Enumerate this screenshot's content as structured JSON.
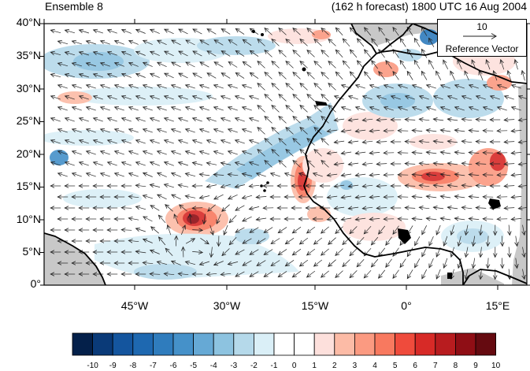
{
  "header": {
    "left_title": "Ensemble 8",
    "right_title": "(162 h forecast) 1800 UTC 16 Aug 2004"
  },
  "map": {
    "lat_labels": [
      "40°N",
      "35°N",
      "30°N",
      "25°N",
      "20°N",
      "15°N",
      "10°N",
      "5°N",
      "0°"
    ],
    "lon_labels": [
      "45°W",
      "30°W",
      "15°W",
      "0°",
      "15°E"
    ],
    "lon_range": [
      -58,
      20
    ],
    "lat_range": [
      0,
      40
    ],
    "land_mask_color": "#c8c8c8",
    "coastline_color": "#000000"
  },
  "reference_vector": {
    "magnitude": "10",
    "label": "Reference Vector"
  },
  "colorbar": {
    "labels": [
      "-10",
      "-9",
      "-8",
      "-7",
      "-6",
      "-5",
      "-4",
      "-3",
      "-2",
      "-1",
      "0",
      "1",
      "2",
      "3",
      "4",
      "5",
      "6",
      "7",
      "8",
      "9",
      "10"
    ],
    "colors": [
      "#04204a",
      "#0a3a78",
      "#14559e",
      "#1e68b0",
      "#2f7cbd",
      "#4591c9",
      "#66a9d5",
      "#8dc3e0",
      "#b5d9ea",
      "#daeff7",
      "#ffffff",
      "#ffffff",
      "#fde0dc",
      "#fcbba6",
      "#fb9a81",
      "#f8795f",
      "#ef4b3c",
      "#d72a27",
      "#b81c1f",
      "#8f0e15",
      "#650a10"
    ]
  }
}
